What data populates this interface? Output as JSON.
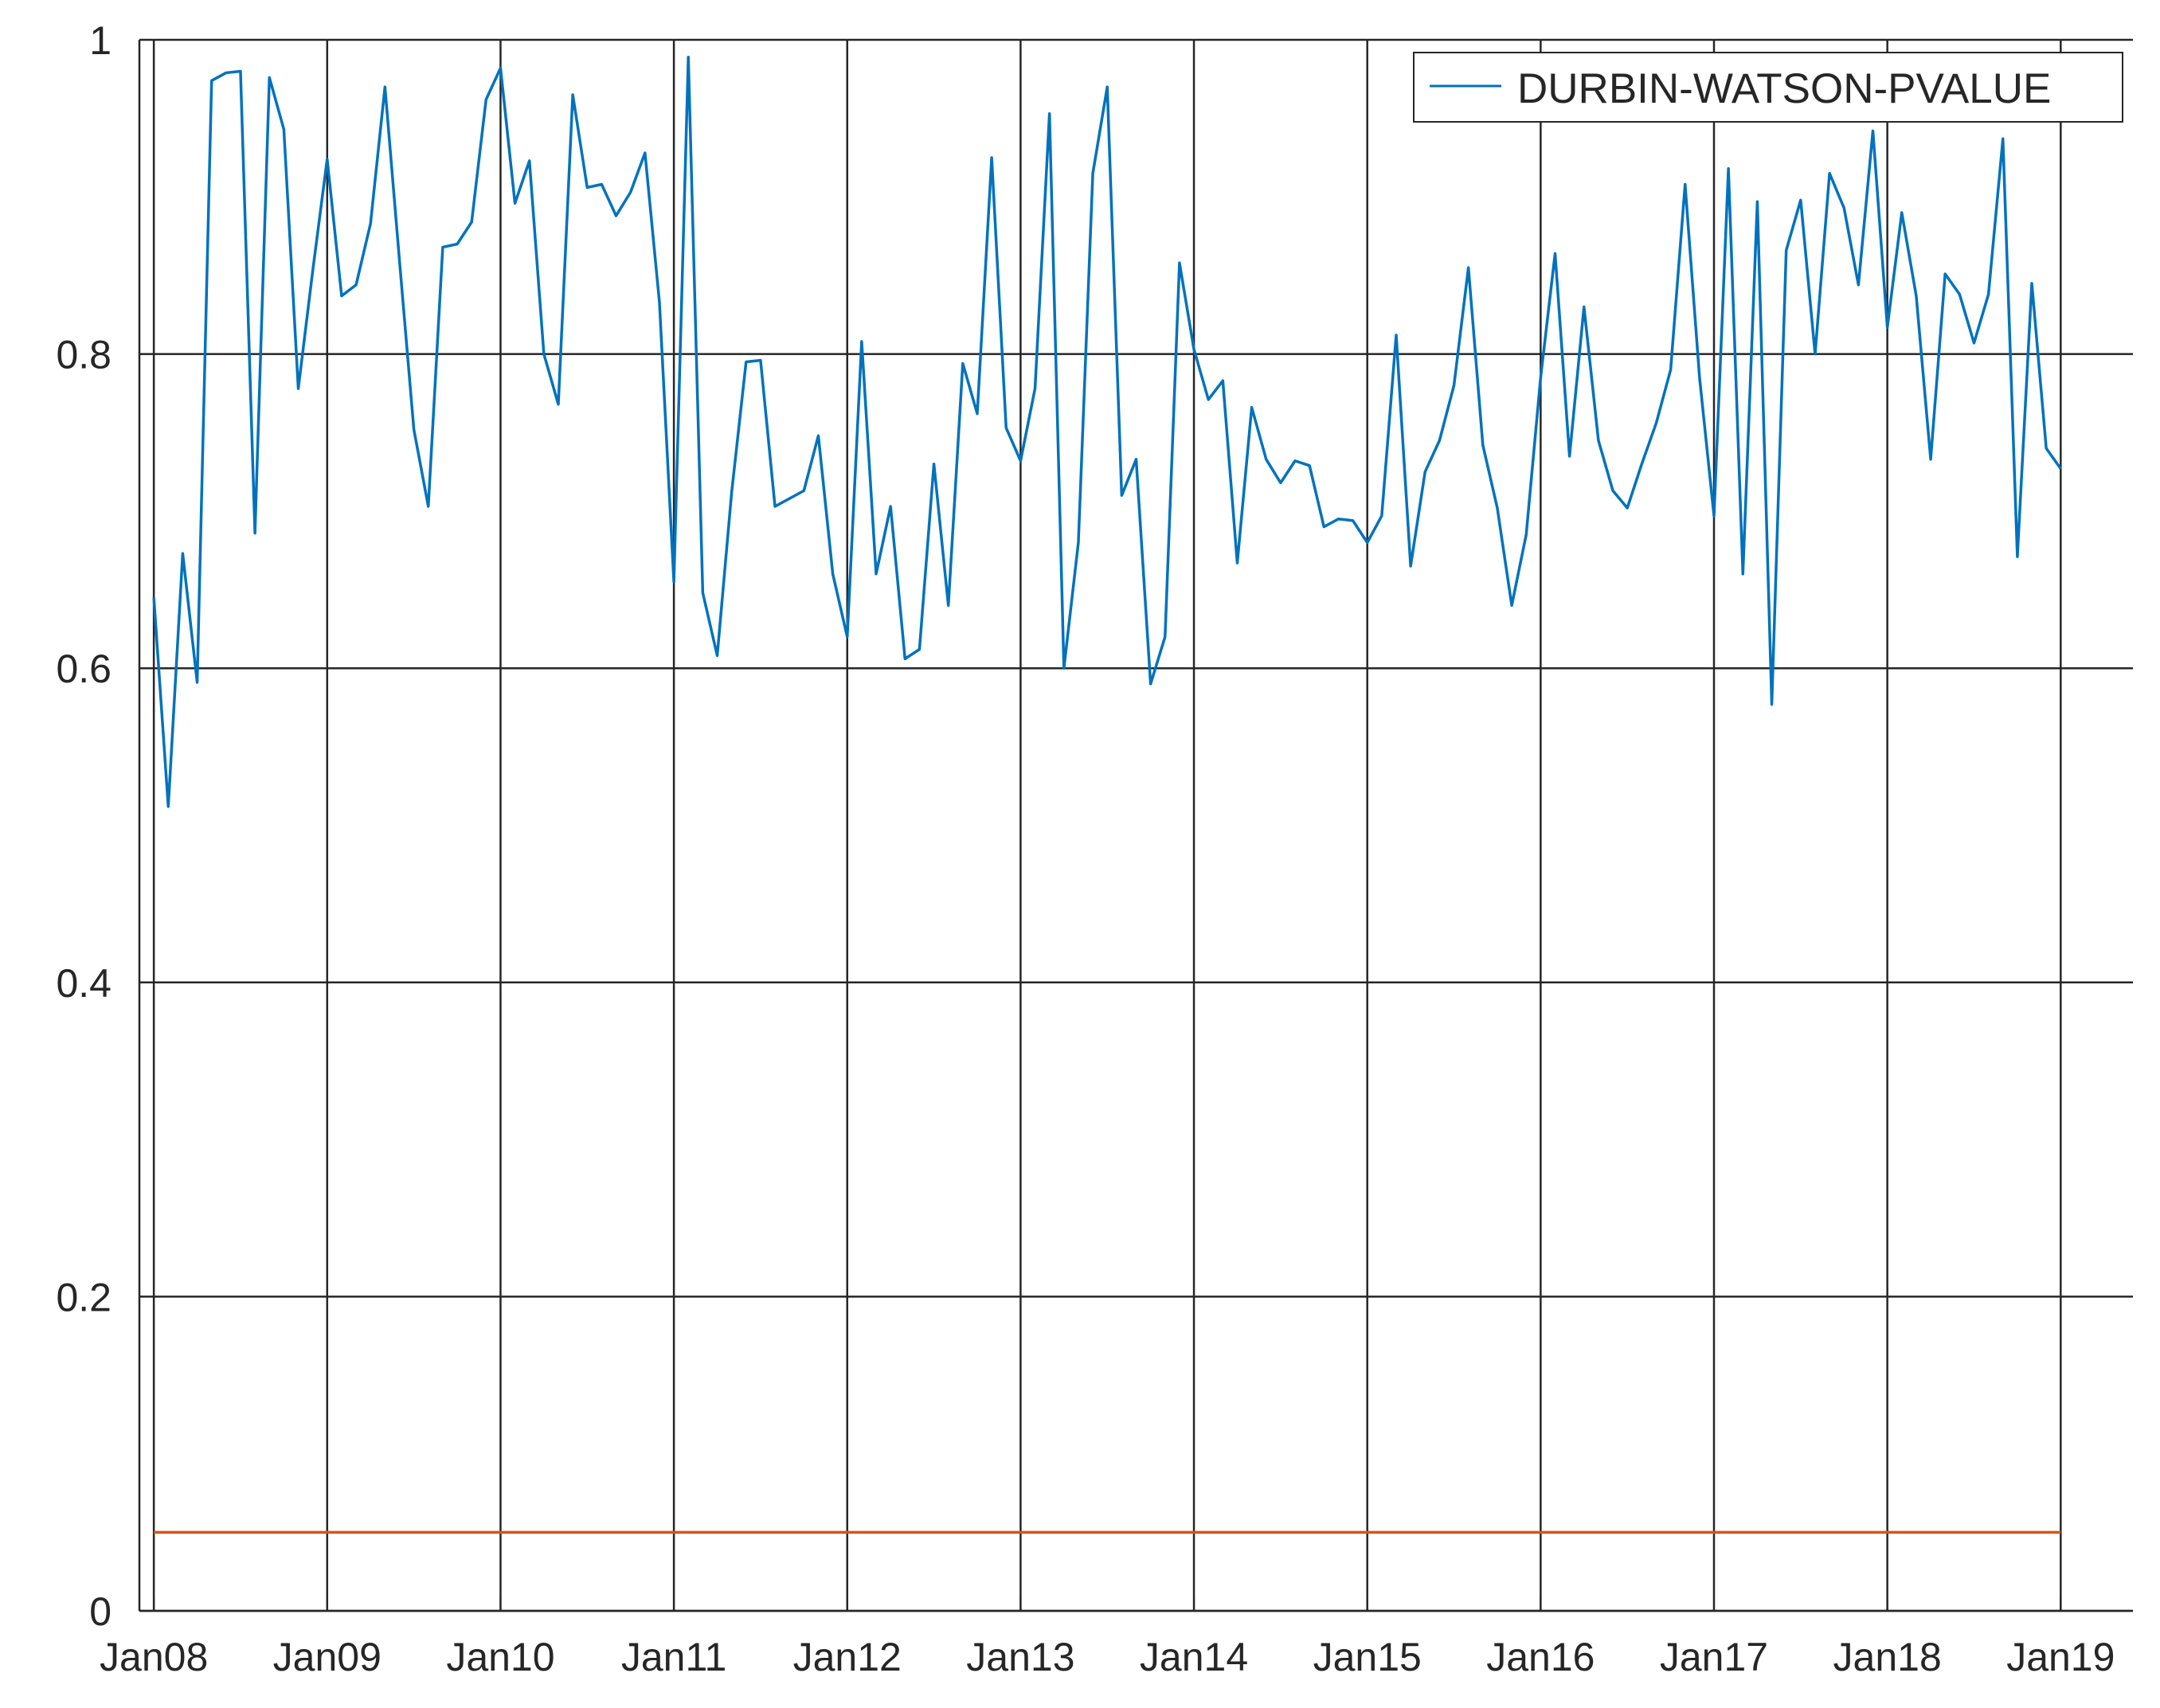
{
  "chart_data": {
    "type": "line",
    "title": "",
    "xlabel": "",
    "ylabel": "",
    "x_start": "Jan08",
    "x_step": "1 month",
    "xlim": [
      -1,
      137
    ],
    "ylim": [
      0,
      1
    ],
    "grid": true,
    "x_ticks": [
      0,
      12,
      24,
      36,
      48,
      60,
      72,
      84,
      96,
      108,
      120,
      132
    ],
    "x_tick_labels": [
      "Jan08",
      "Jan09",
      "Jan10",
      "Jan11",
      "Jan12",
      "Jan13",
      "Jan14",
      "Jan15",
      "Jan16",
      "Jan17",
      "Jan18",
      "Jan19"
    ],
    "y_ticks": [
      0,
      0.2,
      0.4,
      0.6,
      0.8,
      1
    ],
    "y_tick_labels": [
      "0",
      "0.2",
      "0.4",
      "0.6",
      "0.8",
      "1"
    ],
    "legend": {
      "position": "top-right",
      "entries": [
        "DURBIN-WATSON-PVALUE"
      ]
    },
    "series": [
      {
        "name": "DURBIN-WATSON-PVALUE",
        "color": "#0072BD",
        "values": [
          0.645,
          0.512,
          0.673,
          0.591,
          0.974,
          0.979,
          0.98,
          0.686,
          0.976,
          0.943,
          0.778,
          0.853,
          0.924,
          0.837,
          0.844,
          0.883,
          0.97,
          0.86,
          0.752,
          0.703,
          0.868,
          0.87,
          0.884,
          0.962,
          0.982,
          0.896,
          0.923,
          0.8,
          0.768,
          0.965,
          0.906,
          0.908,
          0.888,
          0.903,
          0.928,
          0.833,
          0.655,
          0.989,
          0.648,
          0.608,
          0.712,
          0.795,
          0.796,
          0.703,
          0.708,
          0.713,
          0.748,
          0.66,
          0.62,
          0.808,
          0.66,
          0.703,
          0.606,
          0.612,
          0.73,
          0.64,
          0.794,
          0.762,
          0.925,
          0.753,
          0.732,
          0.778,
          0.953,
          0.6,
          0.68,
          0.915,
          0.97,
          0.71,
          0.733,
          0.59,
          0.62,
          0.858,
          0.803,
          0.771,
          0.783,
          0.667,
          0.766,
          0.733,
          0.718,
          0.732,
          0.729,
          0.69,
          0.695,
          0.694,
          0.68,
          0.697,
          0.812,
          0.665,
          0.725,
          0.745,
          0.78,
          0.855,
          0.742,
          0.702,
          0.64,
          0.685,
          0.785,
          0.864,
          0.735,
          0.83,
          0.745,
          0.713,
          0.702,
          0.73,
          0.756,
          0.79,
          0.908,
          0.785,
          0.697,
          0.918,
          0.66,
          0.897,
          0.577,
          0.866,
          0.898,
          0.8,
          0.915,
          0.893,
          0.844,
          0.942,
          0.817,
          0.89,
          0.837,
          0.733,
          0.851,
          0.838,
          0.807,
          0.838,
          0.937,
          0.671,
          0.845,
          0.74,
          0.727
        ]
      },
      {
        "name": "",
        "color": "#D95319",
        "values": [
          0.05,
          0.05
        ]
      }
    ],
    "series_x": [
      null,
      [
        0,
        132
      ]
    ]
  }
}
